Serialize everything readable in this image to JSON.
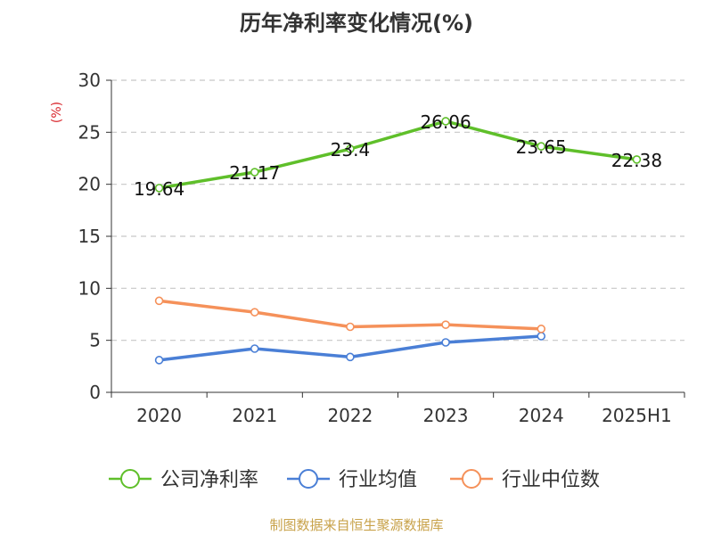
{
  "title": "历年净利率变化情况(%)",
  "source": "制图数据来自恒生聚源数据库",
  "chart_data": {
    "type": "line",
    "title": "历年净利率变化情况(%)",
    "ylabel": "(%)",
    "categories": [
      "2020",
      "2021",
      "2022",
      "2023",
      "2024",
      "2025H1"
    ],
    "ylim": [
      0,
      30
    ],
    "yticks": [
      "0",
      "5",
      "10",
      "15",
      "20",
      "25",
      "30"
    ],
    "grid": true,
    "legend_position": "bottom",
    "series": [
      {
        "name": "公司净利率",
        "color": "#5fbf2a",
        "values": [
          19.64,
          21.17,
          23.4,
          26.06,
          23.65,
          22.38
        ],
        "labels": [
          "19.64",
          "21.17",
          "23.4",
          "26.06",
          "23.65",
          "22.38"
        ]
      },
      {
        "name": "行业均值",
        "color": "#4a7fd6",
        "values": [
          3.1,
          4.2,
          3.4,
          4.8,
          5.4,
          null
        ]
      },
      {
        "name": "行业中位数",
        "color": "#f5915a",
        "values": [
          8.8,
          7.7,
          6.3,
          6.5,
          6.1,
          null
        ]
      }
    ]
  }
}
